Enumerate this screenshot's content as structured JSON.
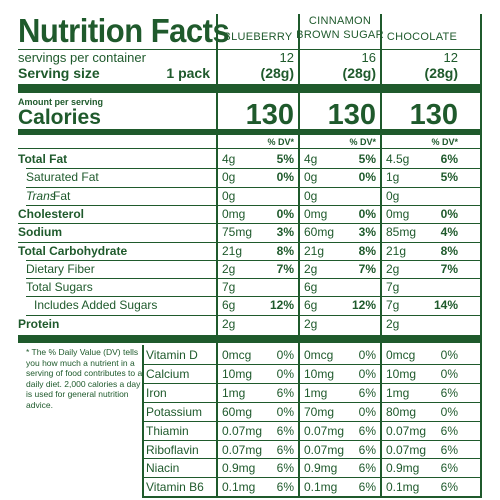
{
  "title": "Nutrition Facts",
  "columns": [
    "BLUEBERRY",
    "CINNAMON\nBROWN SUGAR",
    "CHOCOLATE"
  ],
  "columns_lines": [
    [
      "BLUEBERRY"
    ],
    [
      "CINNAMON",
      "BROWN SUGAR"
    ],
    [
      "CHOCOLATE"
    ]
  ],
  "servings_label": "servings per container",
  "servings": [
    "12",
    "16",
    "12"
  ],
  "serving_size_label": "Serving size",
  "serving_size_unit": "1 pack",
  "serving_size": [
    "(28g)",
    "(28g)",
    "(28g)"
  ],
  "amount_per_serving": "Amount per serving",
  "calories_label": "Calories",
  "calories": [
    "130",
    "130",
    "130"
  ],
  "dv_header": "% DV*",
  "nutrients": [
    {
      "label": "Total Fat",
      "bold": true,
      "indent": 0,
      "values": [
        [
          "4g",
          "5%"
        ],
        [
          "4g",
          "5%"
        ],
        [
          "4.5g",
          "6%"
        ]
      ]
    },
    {
      "label": "Saturated Fat",
      "bold": false,
      "indent": 1,
      "values": [
        [
          "0g",
          "0%"
        ],
        [
          "0g",
          "0%"
        ],
        [
          "1g",
          "5%"
        ]
      ]
    },
    {
      "label_italic": "Trans",
      "label": " Fat",
      "bold": false,
      "indent": 1,
      "values": [
        [
          "0g",
          ""
        ],
        [
          "0g",
          ""
        ],
        [
          "0g",
          ""
        ]
      ]
    },
    {
      "label": "Cholesterol",
      "bold": true,
      "indent": 0,
      "values": [
        [
          "0mg",
          "0%"
        ],
        [
          "0mg",
          "0%"
        ],
        [
          "0mg",
          "0%"
        ]
      ]
    },
    {
      "label": "Sodium",
      "bold": true,
      "indent": 0,
      "values": [
        [
          "75mg",
          "3%"
        ],
        [
          "60mg",
          "3%"
        ],
        [
          "85mg",
          "4%"
        ]
      ]
    },
    {
      "label": "Total Carbohydrate",
      "bold": true,
      "indent": 0,
      "values": [
        [
          "21g",
          "8%"
        ],
        [
          "21g",
          "8%"
        ],
        [
          "21g",
          "8%"
        ]
      ]
    },
    {
      "label": "Dietary Fiber",
      "bold": false,
      "indent": 1,
      "values": [
        [
          "2g",
          "7%"
        ],
        [
          "2g",
          "7%"
        ],
        [
          "2g",
          "7%"
        ]
      ]
    },
    {
      "label": "Total Sugars",
      "bold": false,
      "indent": 1,
      "values": [
        [
          "7g",
          ""
        ],
        [
          "6g",
          ""
        ],
        [
          "7g",
          ""
        ]
      ]
    },
    {
      "label": "Includes Added Sugars",
      "bold": false,
      "indent": 2,
      "values": [
        [
          "6g",
          "12%"
        ],
        [
          "6g",
          "12%"
        ],
        [
          "7g",
          "14%"
        ]
      ]
    },
    {
      "label": "Protein",
      "bold": true,
      "indent": 0,
      "values": [
        [
          "2g",
          ""
        ],
        [
          "2g",
          ""
        ],
        [
          "2g",
          ""
        ]
      ]
    }
  ],
  "footnote": "* The % Daily Value (DV) tells you how much a nutrient in a serving of food contributes to a daily diet. 2,000 calories a day is used for general nutrition advice.",
  "vitamins": [
    {
      "label": "Vitamin D",
      "values": [
        [
          "0mcg",
          "0%"
        ],
        [
          "0mcg",
          "0%"
        ],
        [
          "0mcg",
          "0%"
        ]
      ]
    },
    {
      "label": "Calcium",
      "values": [
        [
          "10mg",
          "0%"
        ],
        [
          "10mg",
          "0%"
        ],
        [
          "10mg",
          "0%"
        ]
      ]
    },
    {
      "label": "Iron",
      "values": [
        [
          "1mg",
          "6%"
        ],
        [
          "1mg",
          "6%"
        ],
        [
          "1mg",
          "6%"
        ]
      ]
    },
    {
      "label": "Potassium",
      "values": [
        [
          "60mg",
          "0%"
        ],
        [
          "70mg",
          "0%"
        ],
        [
          "80mg",
          "0%"
        ]
      ]
    },
    {
      "label": "Thiamin",
      "values": [
        [
          "0.07mg",
          "6%"
        ],
        [
          "0.07mg",
          "6%"
        ],
        [
          "0.07mg",
          "6%"
        ]
      ]
    },
    {
      "label": "Riboflavin",
      "values": [
        [
          "0.07mg",
          "6%"
        ],
        [
          "0.07mg",
          "6%"
        ],
        [
          "0.07mg",
          "6%"
        ]
      ]
    },
    {
      "label": "Niacin",
      "values": [
        [
          "0.9mg",
          "6%"
        ],
        [
          "0.9mg",
          "6%"
        ],
        [
          "0.9mg",
          "6%"
        ]
      ]
    },
    {
      "label": "Vitamin B6",
      "values": [
        [
          "0.1mg",
          "6%"
        ],
        [
          "0.1mg",
          "6%"
        ],
        [
          "0.1mg",
          "6%"
        ]
      ]
    }
  ],
  "colors": {
    "ink": "#1f5a2c",
    "background": "#ffffff"
  }
}
